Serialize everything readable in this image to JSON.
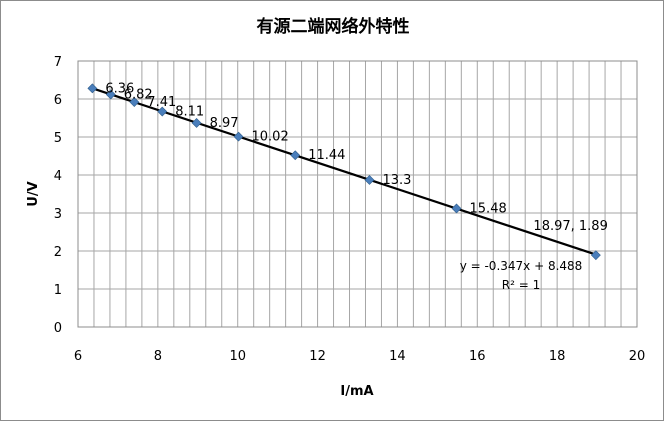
{
  "chart_data": {
    "type": "scatter",
    "title": "有源二端网络外特性",
    "xlabel": "I/mA",
    "ylabel": "U/V",
    "xlim": [
      6,
      20
    ],
    "ylim": [
      0,
      7
    ],
    "x_ticks": [
      "6",
      "8",
      "10",
      "12",
      "14",
      "16",
      "18",
      "20"
    ],
    "y_ticks": [
      "0",
      "1",
      "2",
      "3",
      "4",
      "5",
      "6",
      "7"
    ],
    "x_minor_step": 0.4,
    "grid": true,
    "series": [
      {
        "x": [
          6.36,
          6.82,
          7.41,
          8.11,
          8.97,
          10.02,
          11.44,
          13.3,
          15.48,
          18.97
        ],
        "y": [
          6.28,
          6.12,
          5.92,
          5.67,
          5.37,
          5.01,
          4.52,
          3.87,
          3.12,
          1.89
        ],
        "labels": [
          "6.36",
          "6.82",
          "7.41",
          "8.11",
          "8.97",
          "10.02",
          "11.44",
          "13.3",
          "15.48",
          "18.97, 1.89"
        ]
      }
    ],
    "trendline": {
      "type": "linear",
      "slope": -0.347,
      "intercept": 8.488,
      "equation": "y = -0.347x + 8.488",
      "r_squared": "R² = 1"
    },
    "colors": {
      "marker": "#4a7ebb",
      "trendline": "#000000",
      "grid": "#a6a6a6",
      "border": "#8c8c8c"
    }
  }
}
